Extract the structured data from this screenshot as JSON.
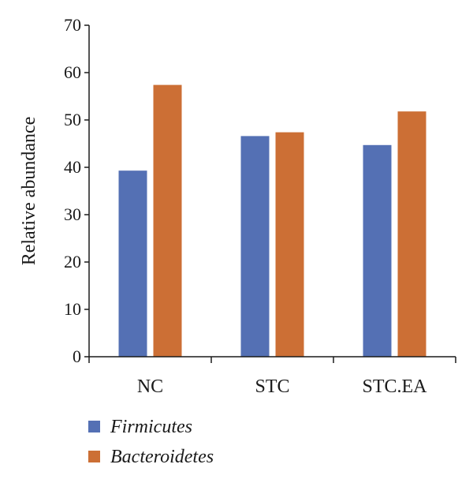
{
  "chart_data": {
    "type": "bar",
    "title": "",
    "xlabel": "",
    "ylabel": "Relative abundance",
    "ylim": [
      0,
      70
    ],
    "yticks": [
      0,
      10,
      20,
      30,
      40,
      50,
      60,
      70
    ],
    "grid": false,
    "legend_position": "bottom-left",
    "categories": [
      "NC",
      "STC",
      "STC.EA"
    ],
    "series": [
      {
        "name": "Firmicutes",
        "color": "#5470b4",
        "values": [
          39.3,
          46.6,
          44.7
        ]
      },
      {
        "name": "Bacteroidetes",
        "color": "#cc6f35",
        "values": [
          57.4,
          47.4,
          51.8
        ]
      }
    ]
  }
}
